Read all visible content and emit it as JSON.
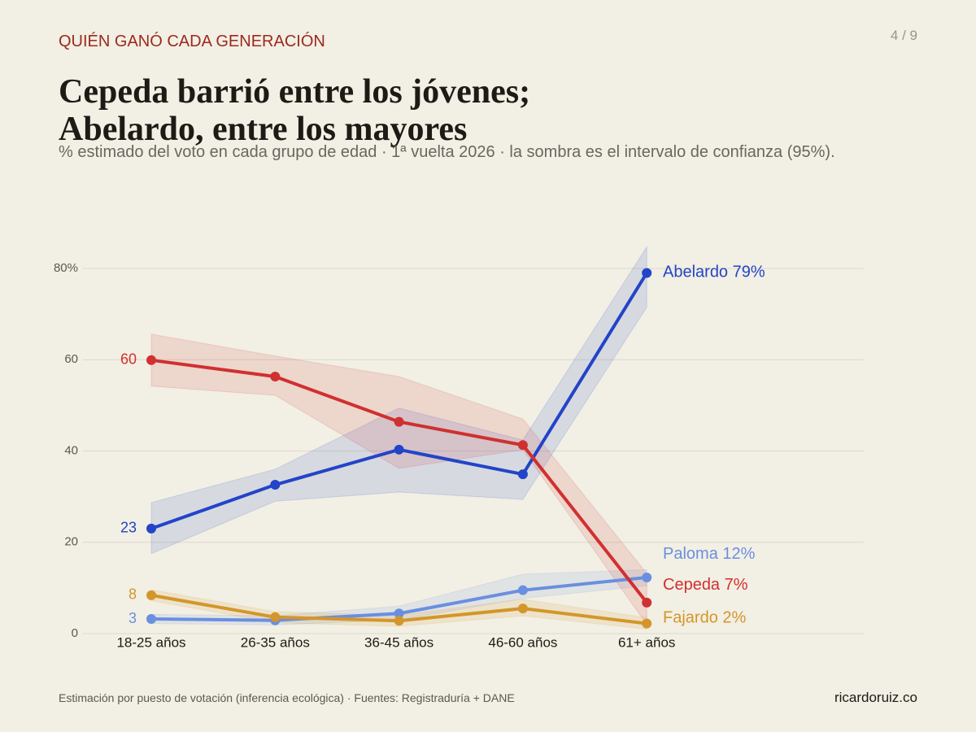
{
  "header": {
    "kicker": "QUIÉN GANÓ CADA GENERACIÓN",
    "page": "4 / 9",
    "title_lines": [
      "Cepeda barrió entre los jóvenes;",
      "Abelardo, entre los mayores"
    ],
    "subtitle": "% estimado del voto en cada grupo de edad · 1ª vuelta 2026 · la sombra es el intervalo de confianza (95%)."
  },
  "chart_data": {
    "type": "line",
    "categories": [
      "18-25 años",
      "26-35 años",
      "36-45 años",
      "46-60 años",
      "61+ años"
    ],
    "ylim": [
      0,
      80
    ],
    "yticks": [
      0,
      20,
      40,
      60,
      {
        "value": 80,
        "label": "80%"
      }
    ],
    "grid": true,
    "series": [
      {
        "name": "Abelardo",
        "color": "#2244c8",
        "values": [
          23,
          32.6,
          40.3,
          34.9,
          79
        ],
        "value_labels": [
          "23",
          null,
          null,
          null,
          "79%"
        ],
        "ci_upper": [
          28.7,
          36,
          49.4,
          42.4,
          84.7
        ],
        "ci_lower": [
          17.5,
          29,
          31,
          29.4,
          71.5
        ]
      },
      {
        "name": "Paloma",
        "color": "#6a8fe0",
        "values": [
          3.2,
          2.9,
          4.4,
          9.5,
          12.3
        ],
        "value_labels": [
          "3",
          null,
          null,
          null,
          "12%"
        ],
        "ci_upper": [
          4.2,
          3.9,
          6,
          13,
          14
        ],
        "ci_lower": [
          2.2,
          1.9,
          3,
          7.7,
          10.5
        ]
      },
      {
        "name": "Cepeda",
        "color": "#d03030",
        "values": [
          59.9,
          56.3,
          46.4,
          41.3,
          6.8
        ],
        "value_labels": [
          "60",
          null,
          null,
          null,
          "7%"
        ],
        "ci_upper": [
          65.6,
          60.8,
          56.3,
          47,
          13.2
        ],
        "ci_lower": [
          54.2,
          52.2,
          36.2,
          40.3,
          2
        ]
      },
      {
        "name": "Fajardo",
        "color": "#d4962a",
        "values": [
          8.4,
          3.6,
          2.8,
          5.5,
          2.2
        ],
        "value_labels": [
          "8",
          null,
          null,
          null,
          "2%"
        ],
        "ci_upper": [
          9.6,
          4.8,
          4,
          7.5,
          3.5
        ],
        "ci_lower": [
          7.2,
          2.4,
          1.6,
          3.9,
          1
        ]
      }
    ]
  },
  "footer": {
    "source": "Estimación por puesto de votación (inferencia ecológica) · Fuentes: Registraduría + DANE",
    "site": "ricardoruiz.co"
  }
}
